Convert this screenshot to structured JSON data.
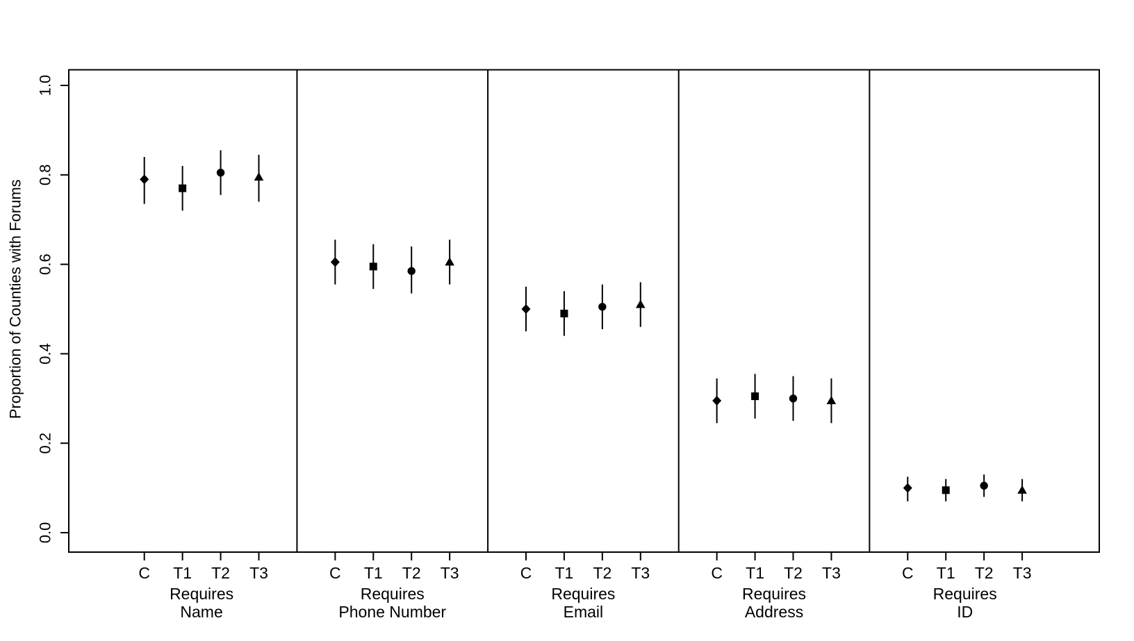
{
  "chart_data": {
    "type": "scatter",
    "title": "",
    "ylabel": "Proportion of Counties with Forums",
    "xlabel": "",
    "ylim": [
      0.0,
      1.0
    ],
    "yticks": [
      0.0,
      0.2,
      0.4,
      0.6,
      0.8,
      1.0
    ],
    "ytick_labels": [
      "0.0",
      "0.2",
      "0.4",
      "0.6",
      "0.8",
      "1.0"
    ],
    "grid": false,
    "legend": "none",
    "point_style": "point estimates with vertical confidence intervals (no caps)",
    "categories": [
      "C",
      "T1",
      "T2",
      "T3"
    ],
    "markers": [
      "diamond",
      "square",
      "circle",
      "triangle"
    ],
    "colors": {
      "foreground": "#000000",
      "background": "#ffffff"
    },
    "panels": [
      {
        "caption_line1": "Requires",
        "caption_line2": "Name",
        "estimates": [
          0.79,
          0.77,
          0.805,
          0.795
        ],
        "ci_low": [
          0.735,
          0.72,
          0.755,
          0.74
        ],
        "ci_high": [
          0.84,
          0.82,
          0.855,
          0.845
        ]
      },
      {
        "caption_line1": "Requires",
        "caption_line2": "Phone Number",
        "estimates": [
          0.605,
          0.595,
          0.585,
          0.605
        ],
        "ci_low": [
          0.555,
          0.545,
          0.535,
          0.555
        ],
        "ci_high": [
          0.655,
          0.645,
          0.64,
          0.655
        ]
      },
      {
        "caption_line1": "Requires",
        "caption_line2": "Email",
        "estimates": [
          0.5,
          0.49,
          0.505,
          0.51
        ],
        "ci_low": [
          0.45,
          0.44,
          0.455,
          0.46
        ],
        "ci_high": [
          0.55,
          0.54,
          0.555,
          0.56
        ]
      },
      {
        "caption_line1": "Requires",
        "caption_line2": "Address",
        "estimates": [
          0.295,
          0.305,
          0.3,
          0.295
        ],
        "ci_low": [
          0.245,
          0.255,
          0.25,
          0.245
        ],
        "ci_high": [
          0.345,
          0.355,
          0.35,
          0.345
        ]
      },
      {
        "caption_line1": "Requires",
        "caption_line2": "ID",
        "estimates": [
          0.1,
          0.095,
          0.105,
          0.095
        ],
        "ci_low": [
          0.07,
          0.07,
          0.08,
          0.07
        ],
        "ci_high": [
          0.125,
          0.12,
          0.13,
          0.12
        ]
      }
    ]
  }
}
